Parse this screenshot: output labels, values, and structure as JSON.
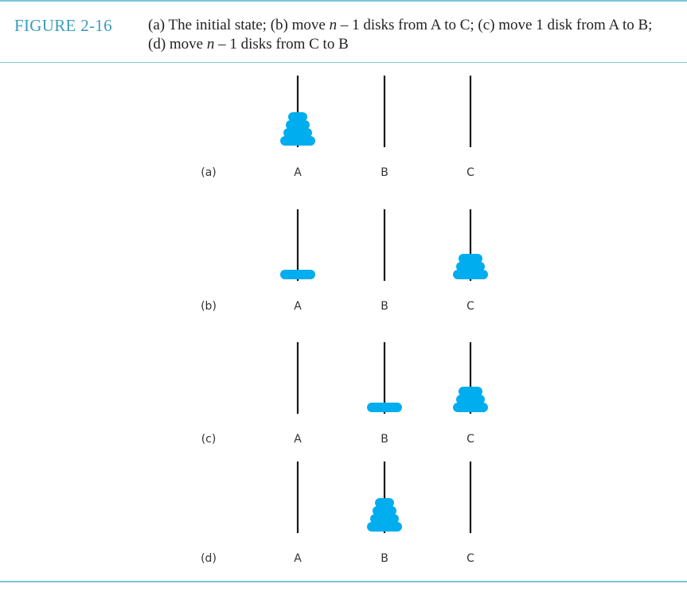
{
  "figure": {
    "label": "FIGURE 2-16",
    "caption_part1": "(a) The initial state; (b) move ",
    "caption_var1": "n",
    "caption_part2": " – 1 disks from A to C; (c) move 1 disk from A to B; (d) move ",
    "caption_var2": "n",
    "caption_part3": " – 1 disks from C to B"
  },
  "colors": {
    "disk": "#00adef",
    "peg": "#1a1a1a",
    "rule": "#7ec3d6",
    "label_accent": "#3a9bbd"
  },
  "peg_labels": [
    "A",
    "B",
    "C"
  ],
  "states": [
    {
      "label": "(a)",
      "stacks": {
        "A": 4,
        "B": 0,
        "C": 0
      },
      "base_on": "A"
    },
    {
      "label": "(b)",
      "stacks": {
        "A": 1,
        "B": 0,
        "C": 3
      },
      "base_on": "A"
    },
    {
      "label": "(c)",
      "stacks": {
        "A": 0,
        "B": 1,
        "C": 3
      },
      "base_on": "B"
    },
    {
      "label": "(d)",
      "stacks": {
        "A": 0,
        "B": 4,
        "C": 0
      },
      "base_on": "B"
    }
  ]
}
